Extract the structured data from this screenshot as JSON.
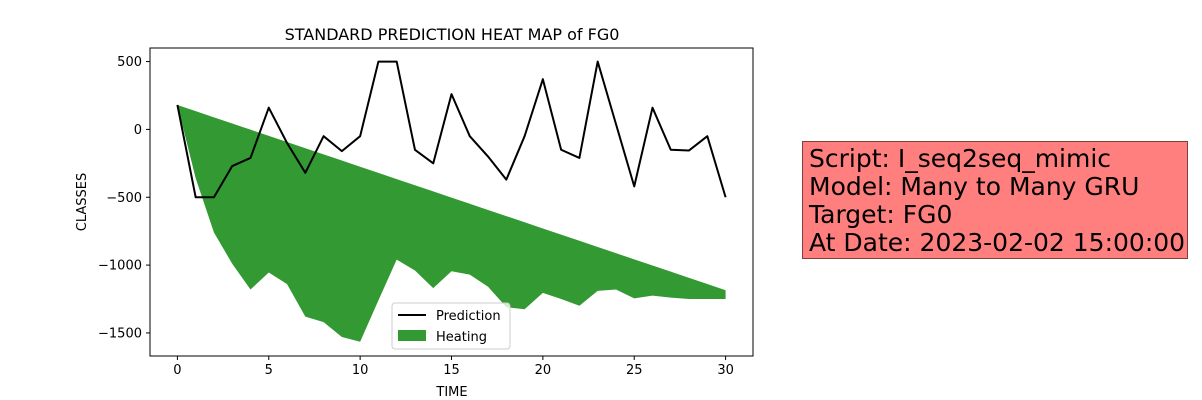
{
  "chart_data": {
    "type": "area",
    "title": "STANDARD PREDICTION HEAT MAP of FG0",
    "xlabel": "TIME",
    "ylabel": "CLASSES",
    "xlim": [
      -1.5,
      31.5
    ],
    "ylim": [
      -1670,
      600
    ],
    "xticks": [
      0,
      5,
      10,
      15,
      20,
      25,
      30
    ],
    "yticks": [
      500,
      0,
      -500,
      -1000,
      -1500
    ],
    "ytick_labels": [
      "500",
      "0",
      "−500",
      "−1000",
      "−1500"
    ],
    "grid": false,
    "legend_position": "lower center",
    "series": [
      {
        "name": "Prediction",
        "kind": "line",
        "color": "#000000",
        "x": [
          0,
          1,
          2,
          3,
          4,
          5,
          6,
          7,
          8,
          9,
          10,
          11,
          12,
          13,
          14,
          15,
          16,
          17,
          18,
          19,
          20,
          21,
          22,
          23,
          24,
          25,
          26,
          27,
          28,
          29,
          30
        ],
        "y": [
          180,
          -500,
          -500,
          -270,
          -210,
          160,
          -100,
          -320,
          -50,
          -160,
          -50,
          500,
          500,
          -150,
          -250,
          260,
          -50,
          -200,
          -370,
          -50,
          370,
          -150,
          -210,
          500,
          40,
          -420,
          160,
          -150,
          -155,
          -50,
          -500
        ]
      },
      {
        "name": "Heating",
        "kind": "fill_between",
        "color": "#339933",
        "x": [
          0,
          1,
          2,
          3,
          4,
          5,
          6,
          7,
          8,
          9,
          10,
          11,
          12,
          13,
          14,
          15,
          16,
          17,
          18,
          19,
          20,
          21,
          22,
          23,
          24,
          25,
          26,
          27,
          28,
          29,
          30
        ],
        "upper": [
          180,
          134.5,
          89,
          43.5,
          -2,
          -47.5,
          -93,
          -138.5,
          -184,
          -229.5,
          -275,
          -320.5,
          -366,
          -411.5,
          -457,
          -502.5,
          -548,
          -593.5,
          -639,
          -684.5,
          -730,
          -775.5,
          -821,
          -866.5,
          -912,
          -957.5,
          -1003,
          -1048.5,
          -1094,
          -1139.5,
          -1185
        ],
        "lower": [
          180,
          -360,
          -760,
          -990,
          -1180,
          -1055,
          -1140,
          -1380,
          -1420,
          -1530,
          -1565,
          -1260,
          -960,
          -1040,
          -1170,
          -1045,
          -1070,
          -1160,
          -1310,
          -1325,
          -1205,
          -1250,
          -1300,
          -1190,
          -1180,
          -1245,
          -1225,
          -1240,
          -1250,
          -1250,
          -1250
        ]
      }
    ]
  },
  "info_box": {
    "lines": [
      "Script: I_seq2seq_mimic",
      "Model: Many to Many GRU",
      "Target: FG0",
      "At Date: 2023-02-02 15:00:00"
    ],
    "background": "#ff7f7f"
  }
}
